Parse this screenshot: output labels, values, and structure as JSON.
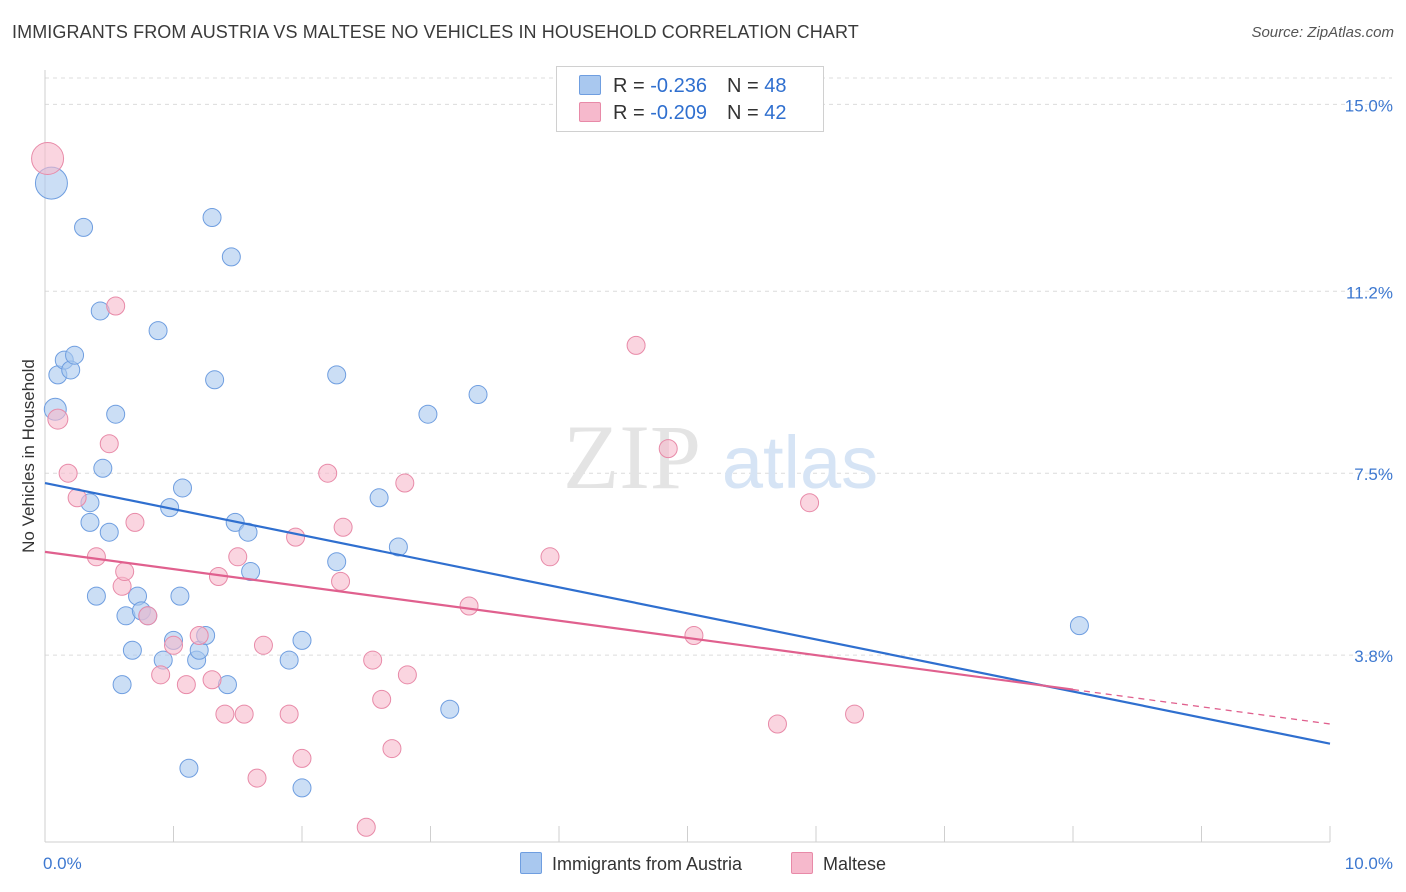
{
  "title": "IMMIGRANTS FROM AUSTRIA VS MALTESE NO VEHICLES IN HOUSEHOLD CORRELATION CHART",
  "source": "Source: ZipAtlas.com",
  "watermark": {
    "zip": "ZIP",
    "atlas": "atlas"
  },
  "colors": {
    "austria_fill": "#a9c8ef",
    "austria_stroke": "#6f9ee0",
    "austria_line": "#2f6fcf",
    "maltese_fill": "#f6b9cc",
    "maltese_stroke": "#e88aa8",
    "maltese_line": "#e0608e",
    "grid": "#dcdcdc",
    "tick_label": "#3d78d0"
  },
  "legend": {
    "austria": {
      "r_label": "R = ",
      "r_value": "-0.236",
      "n_label": "N = ",
      "n_value": "48"
    },
    "maltese": {
      "r_label": "R = ",
      "r_value": "-0.209",
      "n_label": "N = ",
      "n_value": "42"
    }
  },
  "chart_data": {
    "type": "scatter",
    "title": "IMMIGRANTS FROM AUSTRIA VS MALTESE NO VEHICLES IN HOUSEHOLD CORRELATION CHART",
    "xlabel": "",
    "ylabel": "No Vehicles in Household",
    "xlim": [
      0,
      10
    ],
    "ylim": [
      0,
      15.7
    ],
    "x_tick_labels": [
      "0.0%",
      "10.0%"
    ],
    "y_ticks": [
      3.8,
      7.5,
      11.2,
      15.0
    ],
    "y_tick_labels": [
      "3.8%",
      "7.5%",
      "11.2%",
      "15.0%"
    ],
    "grid": true,
    "legend_position": "top-center and bottom",
    "series": [
      {
        "name": "Immigrants from Austria",
        "points": [
          [
            0.05,
            13.4,
            16
          ],
          [
            0.08,
            8.8,
            11
          ],
          [
            0.1,
            9.5,
            9
          ],
          [
            0.15,
            9.8,
            9
          ],
          [
            0.2,
            9.6,
            9
          ],
          [
            0.23,
            9.9,
            9
          ],
          [
            0.3,
            12.5,
            9
          ],
          [
            0.35,
            6.9,
            9
          ],
          [
            0.35,
            6.5,
            9
          ],
          [
            0.4,
            5.0,
            9
          ],
          [
            0.43,
            10.8,
            9
          ],
          [
            0.45,
            7.6,
            9
          ],
          [
            0.5,
            6.3,
            9
          ],
          [
            0.55,
            8.7,
            9
          ],
          [
            0.6,
            3.2,
            9
          ],
          [
            0.63,
            4.6,
            9
          ],
          [
            0.68,
            3.9,
            9
          ],
          [
            0.72,
            5.0,
            9
          ],
          [
            0.75,
            4.7,
            9
          ],
          [
            0.8,
            4.6,
            9
          ],
          [
            0.88,
            10.4,
            9
          ],
          [
            0.92,
            3.7,
            9
          ],
          [
            0.97,
            6.8,
            9
          ],
          [
            1.0,
            4.1,
            9
          ],
          [
            1.05,
            5.0,
            9
          ],
          [
            1.07,
            7.2,
            9
          ],
          [
            1.12,
            1.5,
            9
          ],
          [
            1.18,
            3.7,
            9
          ],
          [
            1.2,
            3.9,
            9
          ],
          [
            1.25,
            4.2,
            9
          ],
          [
            1.3,
            12.7,
            9
          ],
          [
            1.32,
            9.4,
            9
          ],
          [
            1.42,
            3.2,
            9
          ],
          [
            1.45,
            11.9,
            9
          ],
          [
            1.48,
            6.5,
            9
          ],
          [
            1.58,
            6.3,
            9
          ],
          [
            1.6,
            5.5,
            9
          ],
          [
            1.9,
            3.7,
            9
          ],
          [
            2.0,
            4.1,
            9
          ],
          [
            2.0,
            1.1,
            9
          ],
          [
            2.27,
            5.7,
            9
          ],
          [
            2.27,
            9.5,
            9
          ],
          [
            2.6,
            7.0,
            9
          ],
          [
            2.75,
            6.0,
            9
          ],
          [
            2.98,
            8.7,
            9
          ],
          [
            3.15,
            2.7,
            9
          ],
          [
            3.37,
            9.1,
            9
          ],
          [
            8.05,
            4.4,
            9
          ]
        ],
        "trend": [
          [
            0,
            7.3
          ],
          [
            10,
            2.0
          ]
        ]
      },
      {
        "name": "Maltese",
        "points": [
          [
            0.02,
            13.9,
            16
          ],
          [
            0.1,
            8.6,
            10
          ],
          [
            0.18,
            7.5,
            9
          ],
          [
            0.25,
            7.0,
            9
          ],
          [
            0.4,
            5.8,
            9
          ],
          [
            0.5,
            8.1,
            9
          ],
          [
            0.55,
            10.9,
            9
          ],
          [
            0.6,
            5.2,
            9
          ],
          [
            0.62,
            5.5,
            9
          ],
          [
            0.7,
            6.5,
            9
          ],
          [
            0.8,
            4.6,
            9
          ],
          [
            0.9,
            3.4,
            9
          ],
          [
            1.0,
            4.0,
            9
          ],
          [
            1.1,
            3.2,
            9
          ],
          [
            1.2,
            4.2,
            9
          ],
          [
            1.3,
            3.3,
            9
          ],
          [
            1.35,
            5.4,
            9
          ],
          [
            1.4,
            2.6,
            9
          ],
          [
            1.5,
            5.8,
            9
          ],
          [
            1.55,
            2.6,
            9
          ],
          [
            1.65,
            1.3,
            9
          ],
          [
            1.7,
            4.0,
            9
          ],
          [
            1.9,
            2.6,
            9
          ],
          [
            1.95,
            6.2,
            9
          ],
          [
            2.0,
            1.7,
            9
          ],
          [
            2.2,
            7.5,
            9
          ],
          [
            2.3,
            5.3,
            9
          ],
          [
            2.32,
            6.4,
            9
          ],
          [
            2.5,
            0.3,
            9
          ],
          [
            2.55,
            3.7,
            9
          ],
          [
            2.62,
            2.9,
            9
          ],
          [
            2.7,
            1.9,
            9
          ],
          [
            2.8,
            7.3,
            9
          ],
          [
            2.82,
            3.4,
            9
          ],
          [
            3.3,
            4.8,
            9
          ],
          [
            3.93,
            5.8,
            9
          ],
          [
            4.6,
            10.1,
            9
          ],
          [
            4.85,
            8.0,
            9
          ],
          [
            5.05,
            4.2,
            9
          ],
          [
            5.7,
            2.4,
            9
          ],
          [
            5.95,
            6.9,
            9
          ],
          [
            6.3,
            2.6,
            9
          ]
        ],
        "trend": [
          [
            0,
            5.9
          ],
          [
            8.0,
            3.1
          ]
        ],
        "trend_dashed": [
          [
            8.0,
            3.1
          ],
          [
            10,
            2.4
          ]
        ]
      }
    ]
  }
}
